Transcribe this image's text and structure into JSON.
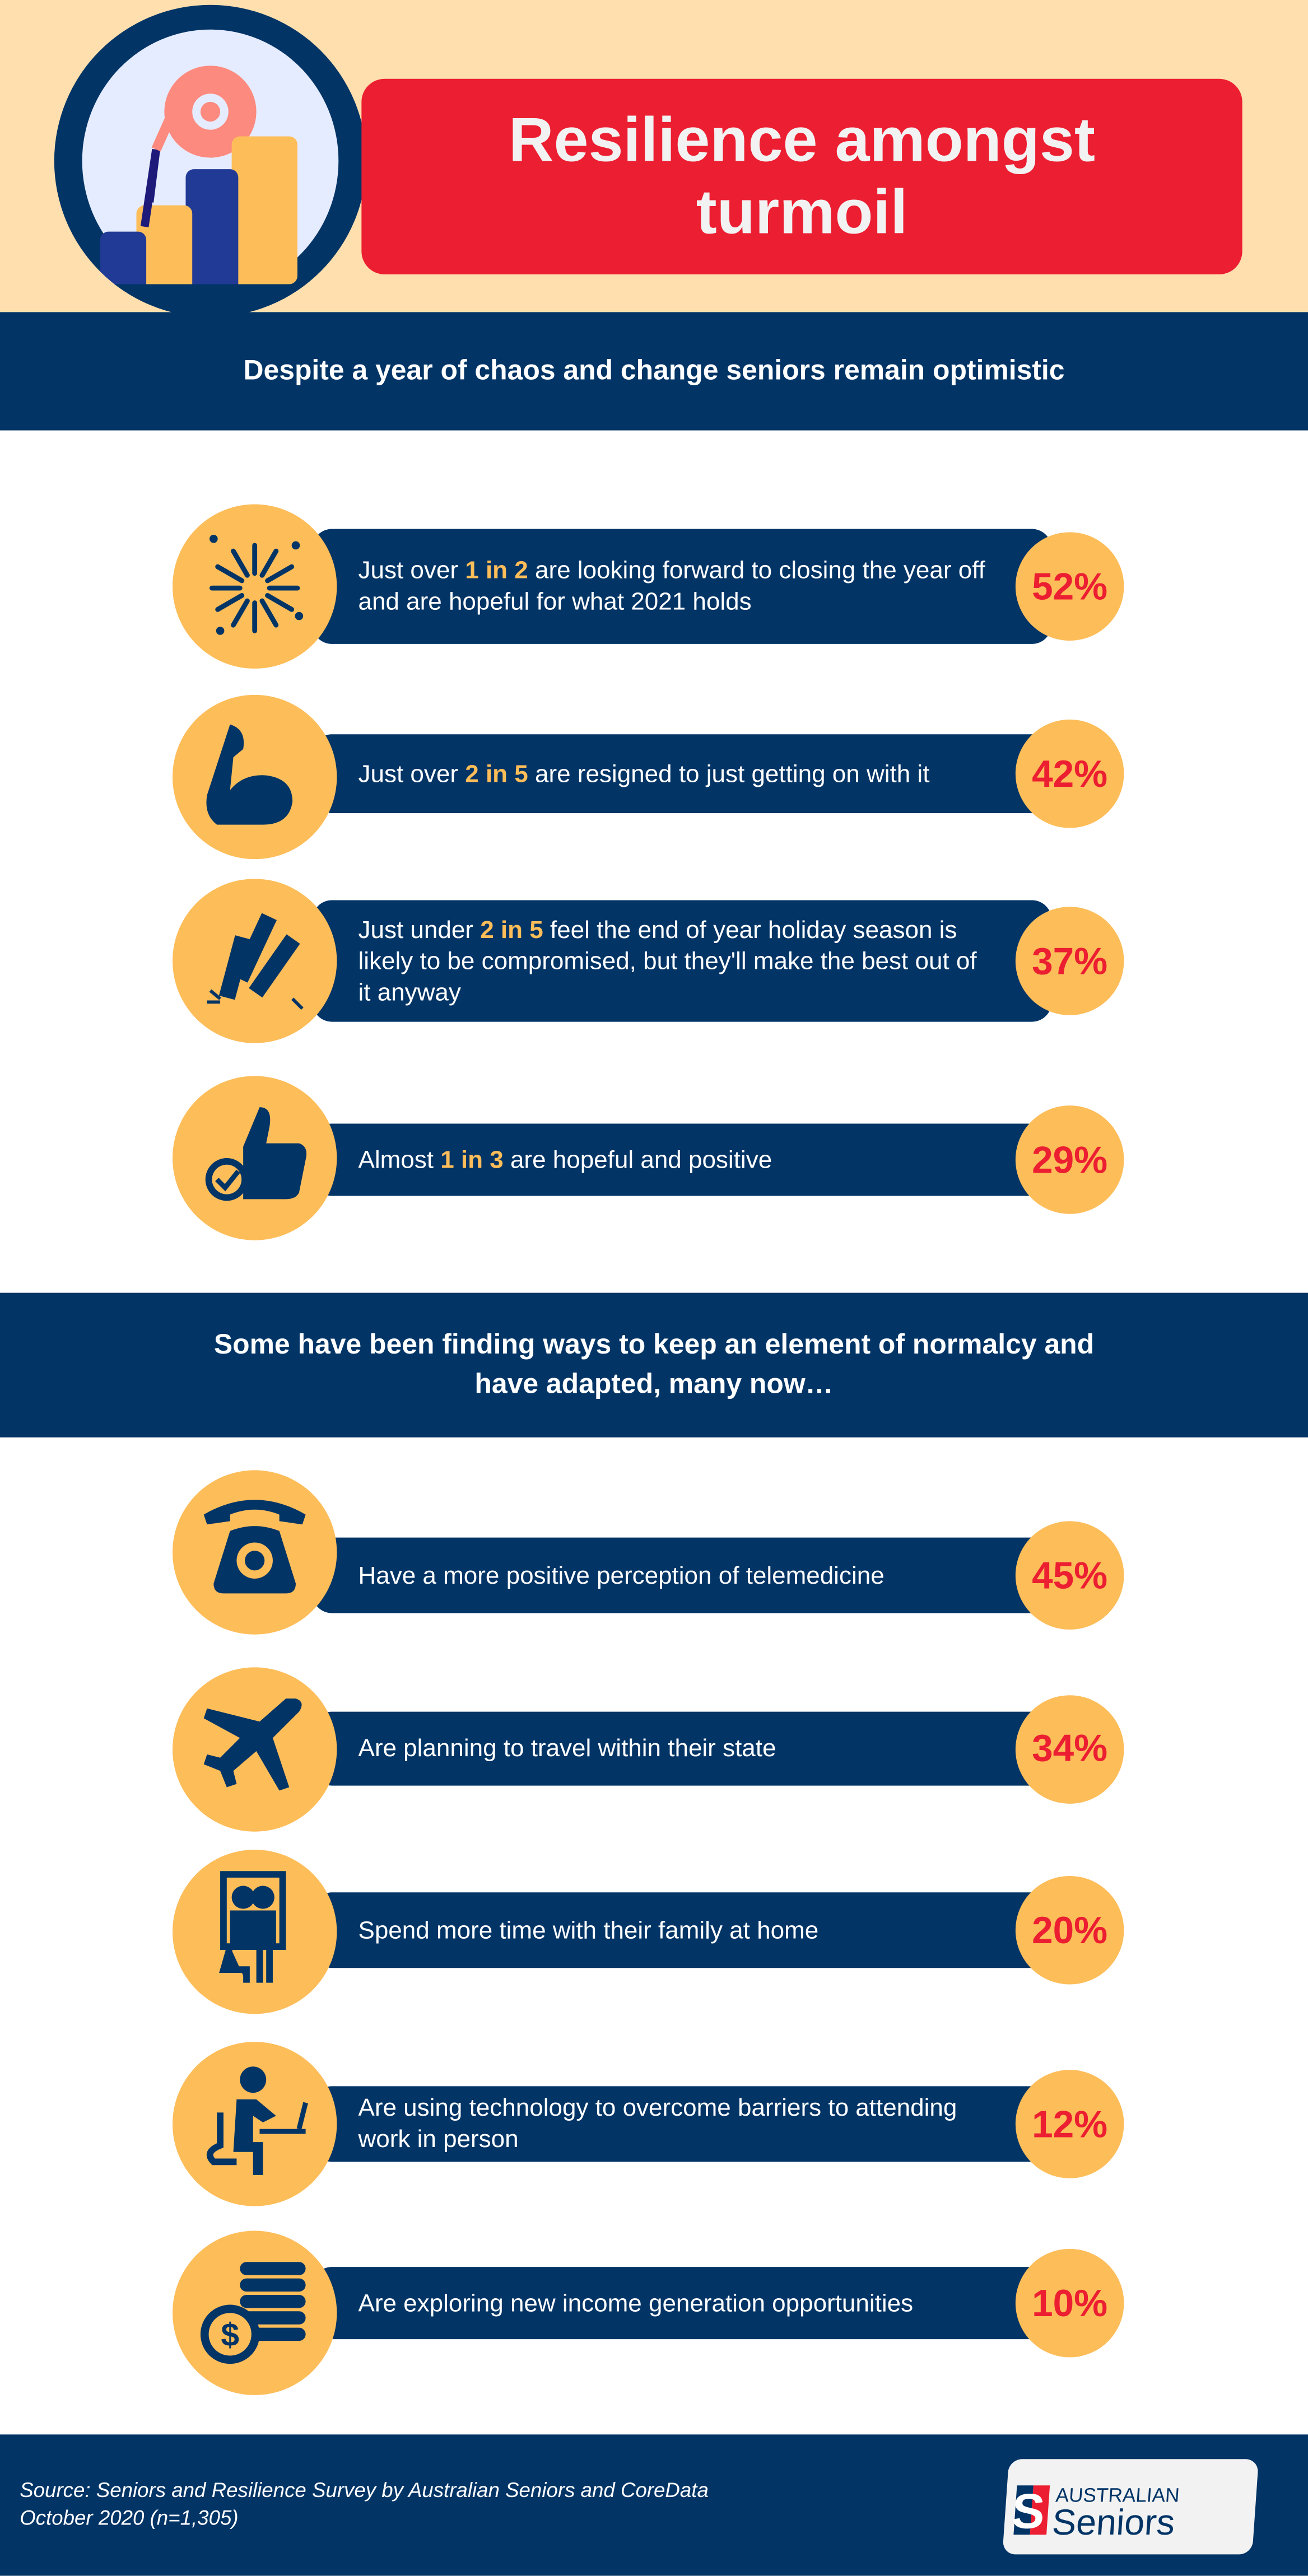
{
  "colors": {
    "navy": "#023466",
    "orange": "#fdbd59",
    "red": "#ec1e31",
    "beige": "#fedfad"
  },
  "header": {
    "title": "Resilience amongst turmoil",
    "hero_icon": "growth-gear-illustration"
  },
  "section1": {
    "heading": "Despite a year of chaos and change seniors remain optimistic",
    "items": [
      {
        "icon": "fireworks-icon",
        "pre": "Just over ",
        "highlight": "1 in 2",
        "post": " are looking forward to closing the year off and are hopeful for what 2021 holds",
        "value": "52%"
      },
      {
        "icon": "flexed-arm-icon",
        "pre": "Just over ",
        "highlight": "2 in 5",
        "post": " are resigned to just getting on with it",
        "value": "42%"
      },
      {
        "icon": "firecrackers-icon",
        "pre": "Just under ",
        "highlight": "2 in 5",
        "post": " feel the end of year holiday season is likely to be compromised, but they'll make the best out of it anyway",
        "value": "37%"
      },
      {
        "icon": "thumbs-up-check-icon",
        "pre": "Almost ",
        "highlight": "1 in 3",
        "post": " are hopeful and positive",
        "value": "29%"
      }
    ]
  },
  "section2": {
    "heading": "Some have been finding ways to keep an element of normalcy and have adapted, many now…",
    "items": [
      {
        "icon": "telephone-icon",
        "text": "Have a more positive perception of telemedicine",
        "value": "45%"
      },
      {
        "icon": "airplane-icon",
        "text": "Are planning to travel within their state",
        "value": "34%"
      },
      {
        "icon": "family-portrait-icon",
        "text": "Spend more time with their family at home",
        "value": "20%"
      },
      {
        "icon": "remote-worker-icon",
        "text": "Are using technology to overcome barriers to attending work in person",
        "value": "12%"
      },
      {
        "icon": "coins-dollar-icon",
        "text": "Are exploring new income generation opportunities",
        "value": "10%"
      }
    ]
  },
  "footer": {
    "source_line1": "Source: Seniors and Resilience Survey by Australian Seniors and CoreData",
    "source_line2": "October 2020 (n=1,305)",
    "logo_text": "AUSTRALIAN Seniors"
  }
}
